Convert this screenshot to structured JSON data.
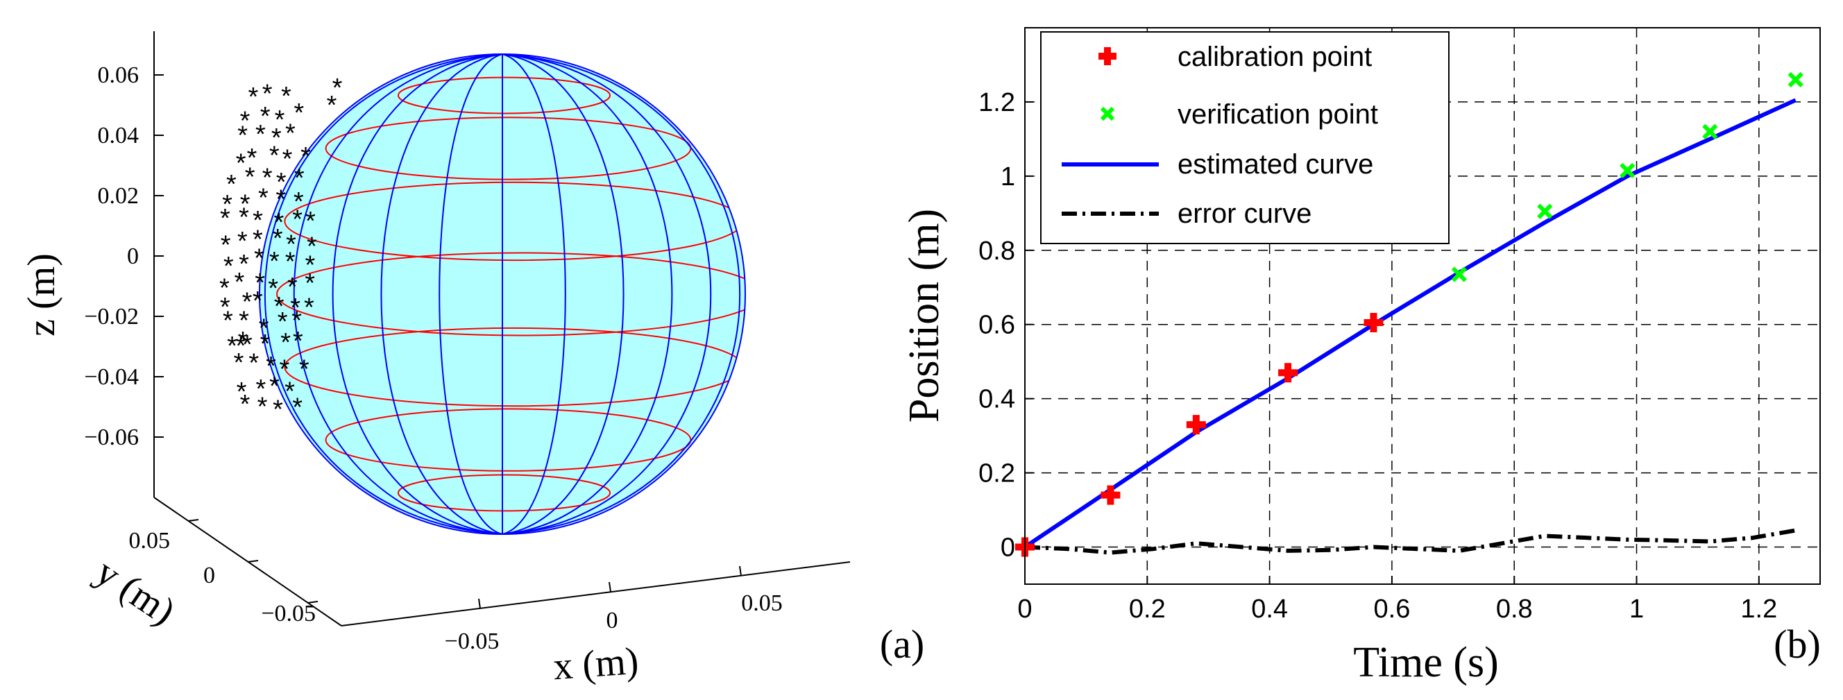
{
  "chart_data": [
    {
      "panel": "a",
      "type": "scatter",
      "subtype": "3d-sphere-surface",
      "panel_label": "(a)",
      "xlabel": "x (m)",
      "ylabel": "y (m)",
      "zlabel": "z (m)",
      "x_ticks": [
        "−0.05",
        "0",
        "0.05"
      ],
      "y_ticks": [
        "0.05",
        "0",
        "−0.05"
      ],
      "z_ticks": [
        "0.06",
        "0.04",
        "0.02",
        "0",
        "−0.02",
        "−0.04",
        "−0.06"
      ],
      "sphere_fill": "#b3ffff",
      "meridian_color": "#0000ff",
      "parallel_color": "#ff0000",
      "marker_color": "#000000",
      "point_marker": "*"
    },
    {
      "panel": "b",
      "type": "line",
      "panel_label": "(b)",
      "xlabel": "Time (s)",
      "ylabel": "Position (m)",
      "xlim": [
        0,
        1.3
      ],
      "ylim": [
        -0.1,
        1.4
      ],
      "x_ticks": [
        0,
        0.2,
        0.4,
        0.6,
        0.8,
        1,
        1.2
      ],
      "x_tick_labels": [
        "0",
        "0.2",
        "0.4",
        "0.6",
        "0.8",
        "1",
        "1.2"
      ],
      "y_ticks": [
        0,
        0.2,
        0.4,
        0.6,
        0.8,
        1,
        1.2
      ],
      "y_tick_labels": [
        "0",
        "0.2",
        "0.4",
        "0.6",
        "0.8",
        "1",
        "1.2"
      ],
      "grid": true,
      "legend_position": "top-left",
      "series": [
        {
          "name": "calibration point",
          "kind": "marker",
          "marker": "plus",
          "color": "#ff0000",
          "x": [
            0,
            0.14,
            0.28,
            0.43,
            0.57
          ],
          "y": [
            0,
            0.14,
            0.33,
            0.47,
            0.605
          ]
        },
        {
          "name": "verification point",
          "kind": "marker",
          "marker": "x",
          "color": "#00ff00",
          "x": [
            0.71,
            0.85,
            0.985,
            1.12,
            1.26
          ],
          "y": [
            0.735,
            0.905,
            1.015,
            1.12,
            1.26
          ]
        },
        {
          "name": "estimated curve",
          "kind": "line",
          "style": "solid",
          "color": "#0000ff",
          "x": [
            0,
            0.14,
            0.28,
            0.43,
            0.57,
            0.71,
            0.85,
            0.985,
            1.12,
            1.26
          ],
          "y": [
            0,
            0.155,
            0.31,
            0.455,
            0.6,
            0.74,
            0.875,
            1.0,
            1.1,
            1.205
          ]
        },
        {
          "name": "error curve",
          "kind": "line",
          "style": "dashdot",
          "color": "#000000",
          "x": [
            0,
            0.07,
            0.14,
            0.21,
            0.28,
            0.355,
            0.43,
            0.5,
            0.57,
            0.64,
            0.71,
            0.78,
            0.85,
            0.92,
            0.985,
            1.05,
            1.12,
            1.19,
            1.26
          ],
          "y": [
            0,
            -0.005,
            -0.015,
            -0.005,
            0.01,
            0.0,
            -0.01,
            -0.008,
            0.0,
            -0.005,
            -0.01,
            0.01,
            0.03,
            0.025,
            0.02,
            0.018,
            0.015,
            0.025,
            0.045
          ]
        }
      ]
    }
  ]
}
